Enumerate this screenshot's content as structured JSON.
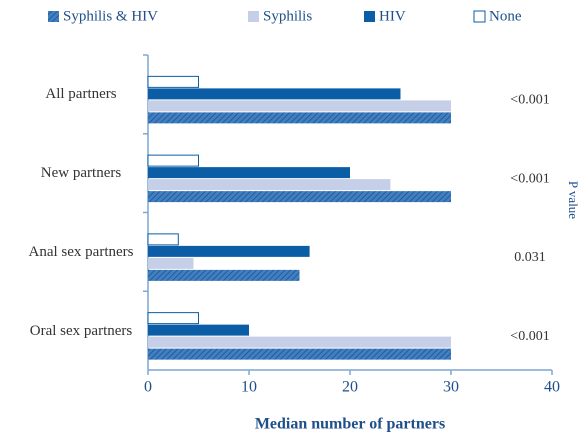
{
  "chart_data": {
    "type": "hbar",
    "categories": [
      "All partners",
      "New partners",
      "Anal sex partners",
      "Oral sex partners"
    ],
    "series": [
      {
        "name": "Syphilis & HIV",
        "color": "#3f7fc2",
        "hatch": true,
        "values": [
          30,
          30,
          15,
          30
        ]
      },
      {
        "name": "Syphilis",
        "color": "#c6cfe8",
        "values": [
          30,
          24,
          4.5,
          30
        ]
      },
      {
        "name": "HIV",
        "color": "#0b5ea6",
        "values": [
          25,
          20,
          16,
          10
        ]
      },
      {
        "name": "None",
        "color": "#ffffff",
        "values": [
          5,
          5,
          3,
          5
        ]
      }
    ],
    "p_values": [
      "<0.001",
      "<0.001",
      "0.031",
      "<0.001"
    ],
    "p_axis_label": "P value",
    "xlabel": "Median number of partners",
    "xlim": [
      0,
      40
    ],
    "xticks": [
      0,
      10,
      20,
      30,
      40
    ]
  }
}
